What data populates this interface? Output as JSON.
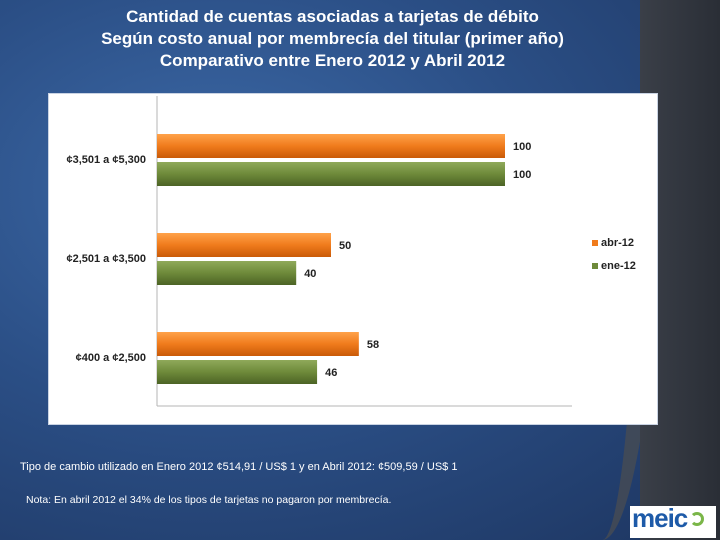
{
  "title": {
    "line1": "Cantidad de cuentas asociadas a tarjetas de débito",
    "line2": "Según costo anual por membrecía del titular (primer año)",
    "line3": "Comparativo entre  Enero  2012 y Abril 2012"
  },
  "notes": {
    "exchange_rate": "Tipo de cambio utilizado en  Enero 2012  ¢514,91 / US$ 1 y en Abril 2012: ¢509,59 / US$ 1",
    "footer": "Nota: En abril 2012 el  34% de los tipos de tarjetas no  pagaron  por membrecía."
  },
  "logo": {
    "text": "meic"
  },
  "chart_data": {
    "type": "bar",
    "orientation": "horizontal",
    "categories": [
      "¢3,501 a ¢5,300",
      "¢2,501 a ¢3,500",
      "¢400 a ¢2,500"
    ],
    "series": [
      {
        "name": "abr-12",
        "values": [
          100,
          50,
          58
        ],
        "color": "#f07b1c"
      },
      {
        "name": "ene-12",
        "values": [
          100,
          40,
          46
        ],
        "color": "#6e8a3a"
      }
    ],
    "xlim": [
      0,
      100
    ],
    "legend_position": "right",
    "data_labels": true,
    "grid": false
  }
}
